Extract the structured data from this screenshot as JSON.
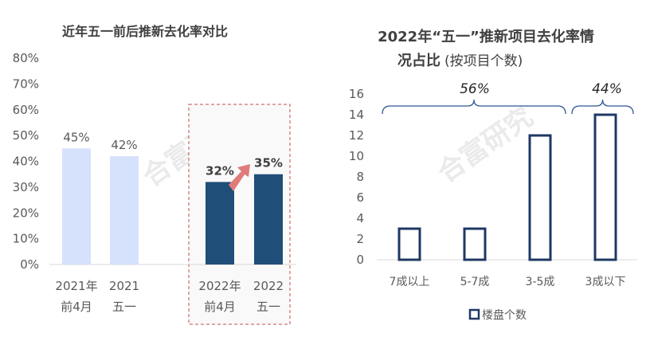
{
  "chart_data": [
    {
      "type": "bar",
      "title": "近年五一前后推新去化率对比",
      "categories": [
        [
          "2021年",
          "前4月"
        ],
        [
          "2021",
          "五一"
        ],
        [
          "2022年",
          "前4月"
        ],
        [
          "2022",
          "五一"
        ]
      ],
      "values": [
        45,
        42,
        32,
        35
      ],
      "data_labels": [
        "45%",
        "42%",
        "32%",
        "35%"
      ],
      "yticks": [
        "0%",
        "10%",
        "20%",
        "30%",
        "40%",
        "50%",
        "60%",
        "70%",
        "80%"
      ],
      "ylim": [
        0,
        80
      ],
      "colors": {
        "light": "#d6e2fb",
        "dark": "#1f4e79",
        "arrow": "#e07b7b",
        "highlight_border": "#c0504d"
      },
      "grid": false,
      "watermark": "合富研究"
    },
    {
      "type": "bar",
      "title_lines": [
        "2022年“五一”推新项目去化率情",
        "况占比"
      ],
      "title_suffix": "(按项目个数)",
      "categories": [
        "7成以上",
        "5-7成",
        "3-5成",
        "3成以下"
      ],
      "values": [
        3,
        3,
        12,
        14
      ],
      "yticks": [
        "0",
        "2",
        "4",
        "6",
        "8",
        "10",
        "12",
        "14",
        "16"
      ],
      "ylim": [
        0,
        16
      ],
      "legend": {
        "label": "楼盘个数",
        "position": "bottom"
      },
      "brackets": [
        {
          "label": "56%"
        },
        {
          "label": "44%"
        }
      ],
      "colors": {
        "bar_stroke": "#1f3864",
        "bracket": "#2f5597"
      },
      "grid": false,
      "watermark": "合富研究"
    }
  ]
}
